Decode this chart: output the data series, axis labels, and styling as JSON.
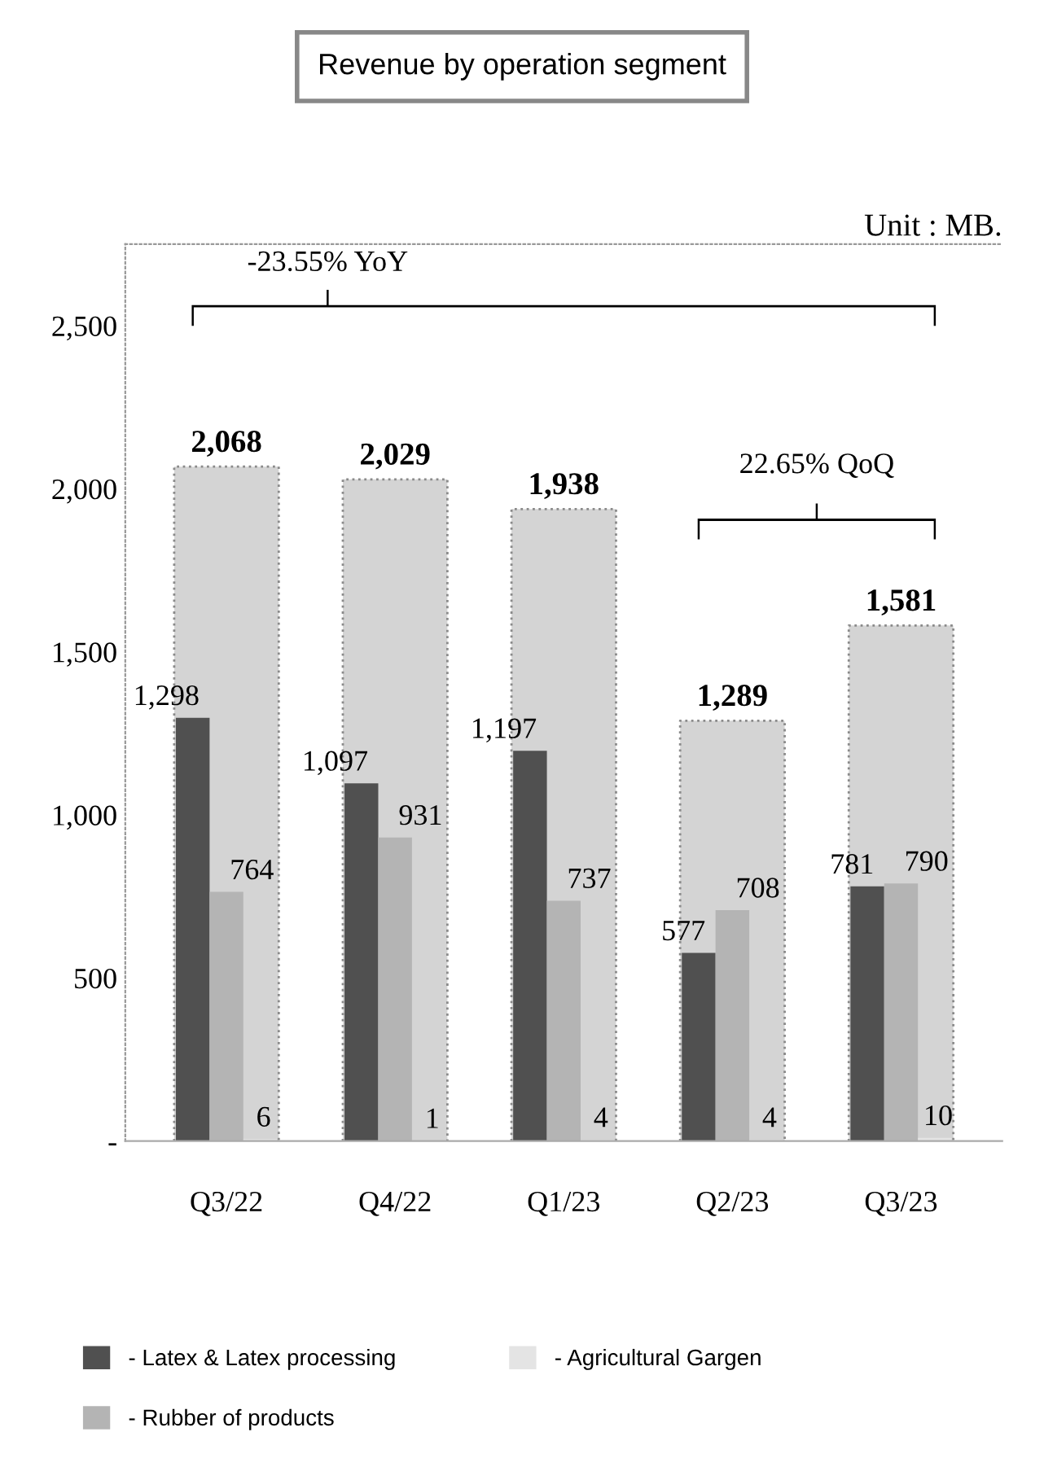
{
  "chart_data": {
    "type": "bar",
    "title": "Revenue by operation segment",
    "categories": [
      "Q3/22",
      "Q4/22",
      "Q1/23",
      "Q2/23",
      "Q3/23"
    ],
    "series": [
      {
        "color": "#d4d4d4",
        "values": [
          2068,
          2029,
          1938,
          1289,
          1581
        ],
        "value_labels": [
          "2,068",
          "2,029",
          "1,938",
          "1,289",
          "1,581"
        ]
      },
      {
        "name": "- Latex & Latex processing",
        "color": "#505050",
        "values": [
          1298,
          1097,
          1197,
          577,
          781
        ],
        "value_labels": [
          "1,298",
          "1,097",
          "1,197",
          "577",
          "781"
        ]
      },
      {
        "name": "- Rubber of products",
        "color": "#b4b4b4",
        "values": [
          764,
          931,
          737,
          708,
          790
        ],
        "value_labels": [
          "764",
          "931",
          "737",
          "708",
          "790"
        ]
      },
      {
        "name": "- Agricultural Gargen",
        "color": "#e4e4e4",
        "values": [
          6,
          1,
          4,
          4,
          10
        ],
        "value_labels": [
          "6",
          "1",
          "4",
          "4",
          "10"
        ]
      }
    ],
    "ylim": [
      0,
      2750
    ],
    "yticks": [
      {
        "value": 0,
        "label": "-"
      },
      500,
      {
        "value": 1000,
        "label": "1,000"
      },
      {
        "value": 1500,
        "label": "1,500"
      },
      {
        "value": 2000,
        "label": "2,000"
      },
      {
        "value": 2500,
        "label": "2,500"
      }
    ],
    "annotations": [
      "-23.55% YoY",
      "22.65% QoQ",
      "Unit : MB."
    ],
    "legend": "bottom",
    "grid": false
  }
}
